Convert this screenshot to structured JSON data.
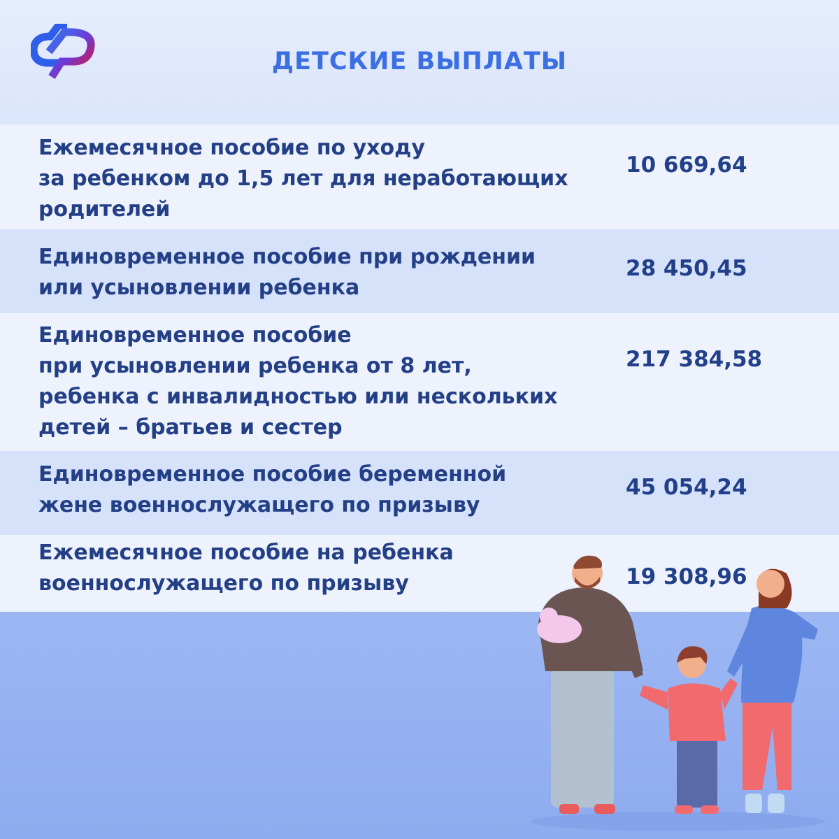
{
  "header": {
    "title": "ДЕТСКИЕ ВЫПЛАТЫ",
    "logo": "СФР"
  },
  "rows": [
    {
      "lines": [
        "Ежемесячное пособие по уходу",
        "за ребенком до 1,5 лет для неработающих",
        "родителей"
      ],
      "value": "10 669,64"
    },
    {
      "lines": [
        "Единовременное пособие при рождении",
        "или усыновлении ребенка"
      ],
      "value": "28 450,45"
    },
    {
      "lines": [
        "Единовременное пособие",
        "при усыновлении ребенка от 8 лет,",
        "ребенка с инвалидностью или нескольких",
        "детей – братьев и сестер"
      ],
      "value": "217 384,58"
    },
    {
      "lines": [
        "Единовременное пособие беременной",
        "жене военнослужащего по призыву"
      ],
      "value": "45 054,24"
    },
    {
      "lines": [
        "Ежемесячное пособие на ребенка",
        "военнослужащего по призыву"
      ],
      "value": "19 308,96"
    }
  ],
  "colors": {
    "text": "#233f86",
    "title": "#3b6fe2",
    "row_light": "#edf2fc",
    "row_dark": "#d6e1fa",
    "background": "#a6bff5"
  }
}
